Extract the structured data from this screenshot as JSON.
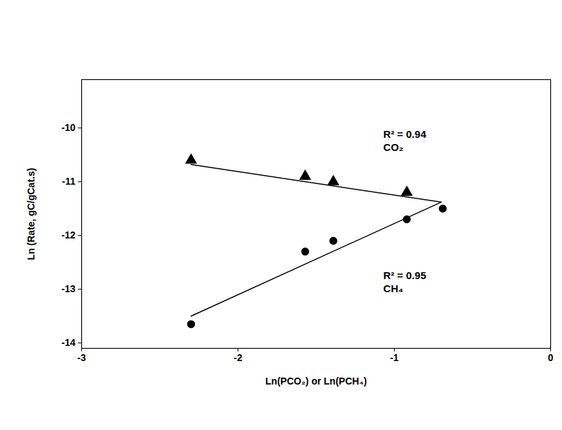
{
  "chart_data": {
    "type": "scatter",
    "x_label": "Ln(PCO₂) or Ln(PCH₄)",
    "y_label": "Ln (Rate, gC/gCat.s)",
    "xlim": [
      -3,
      0
    ],
    "xticks": [
      -3,
      -2,
      -1,
      0
    ],
    "ylim": [
      -14.1,
      -9.1
    ],
    "yticks": [
      -14,
      -13,
      -12,
      -11,
      -10
    ],
    "grid": false,
    "series": [
      {
        "name": "CO₂",
        "color": "#000000",
        "marker": "triangle",
        "x": [
          -2.3,
          -1.57,
          -1.39,
          -0.92
        ],
        "values": [
          -10.6,
          -10.9,
          -11.0,
          -11.2
        ],
        "fit": {
          "x": [
            -2.3,
            -0.7
          ],
          "values": [
            -10.68,
            -11.38
          ],
          "line_style": "solid"
        },
        "annotation": {
          "text": "R² = 0.94",
          "x": -1.07,
          "y": -10.12
        }
      },
      {
        "name": "CH₄",
        "color": "#000000",
        "marker": "circle",
        "x": [
          -2.3,
          -1.57,
          -1.39,
          -0.92,
          -0.69
        ],
        "values": [
          -13.65,
          -12.3,
          -12.1,
          -11.7,
          -11.5
        ],
        "fit": {
          "x": [
            -2.3,
            -0.7
          ],
          "values": [
            -13.5,
            -11.38
          ],
          "line_style": "solid"
        },
        "annotation": {
          "text": "R² = 0.95",
          "x": -1.07,
          "y": -12.75
        }
      }
    ]
  }
}
